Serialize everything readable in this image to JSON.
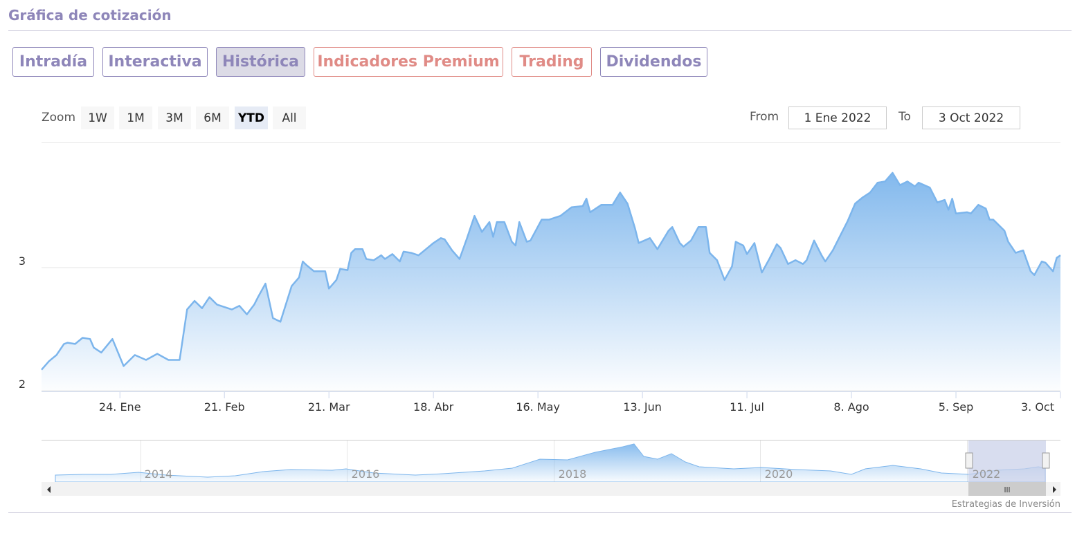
{
  "header": {
    "title": "Gráfica de cotización"
  },
  "tabs": [
    {
      "label": "Intradía"
    },
    {
      "label": "Interactiva"
    },
    {
      "label": "Histórica"
    },
    {
      "label": "Indicadores Premium"
    },
    {
      "label": "Trading"
    },
    {
      "label": "Dividendos"
    }
  ],
  "zoom": {
    "label": "Zoom",
    "buttons": [
      "1W",
      "1M",
      "3M",
      "6M",
      "YTD",
      "All"
    ]
  },
  "range": {
    "from_label": "From",
    "from": "1 Ene 2022",
    "to_label": "To",
    "to": "3 Oct 2022"
  },
  "chart_data": {
    "type": "area",
    "color": "#7cb5ec",
    "x": [
      2,
      4,
      6,
      8,
      9,
      11,
      13,
      15,
      16,
      18,
      21,
      24,
      27,
      30,
      33,
      36,
      39,
      41,
      43,
      45,
      47,
      49,
      53,
      55,
      57,
      59,
      60,
      62,
      64,
      66,
      69,
      71,
      72,
      73,
      75,
      78,
      79,
      81,
      82,
      84,
      85,
      86,
      88,
      89,
      91,
      93,
      94,
      96,
      98,
      99,
      101,
      103,
      105,
      107,
      109,
      110,
      112,
      114,
      116,
      118,
      120,
      122,
      123,
      124,
      126,
      128,
      129,
      130,
      132,
      133,
      136,
      138,
      141,
      144,
      147,
      148,
      149,
      152,
      155,
      157,
      159,
      161,
      162,
      165,
      167,
      170,
      171,
      173,
      174,
      176,
      178,
      180,
      181,
      183,
      185,
      187,
      188,
      190,
      191,
      193,
      195,
      197,
      199,
      200,
      202,
      204,
      206,
      207,
      209,
      211,
      212,
      214,
      216,
      218,
      220,
      222,
      224,
      226,
      228,
      230,
      232,
      234,
      236,
      237,
      240,
      242,
      244,
      245,
      246,
      247,
      250,
      251,
      253,
      255,
      256,
      257,
      260,
      261,
      263,
      265,
      267,
      268,
      270,
      271,
      273,
      274,
      275
    ],
    "values": [
      2.17,
      2.24,
      2.29,
      2.38,
      2.39,
      2.38,
      2.43,
      2.42,
      2.35,
      2.31,
      2.42,
      2.2,
      2.29,
      2.25,
      2.3,
      2.25,
      2.25,
      2.66,
      2.73,
      2.67,
      2.76,
      2.7,
      2.66,
      2.69,
      2.62,
      2.7,
      2.76,
      2.87,
      2.59,
      2.56,
      2.85,
      2.92,
      3.05,
      3.02,
      2.97,
      2.97,
      2.83,
      2.9,
      2.99,
      2.98,
      3.12,
      3.15,
      3.15,
      3.07,
      3.06,
      3.1,
      3.07,
      3.11,
      3.05,
      3.13,
      3.12,
      3.1,
      3.15,
      3.2,
      3.24,
      3.23,
      3.14,
      3.07,
      3.24,
      3.42,
      3.29,
      3.37,
      3.25,
      3.37,
      3.37,
      3.21,
      3.18,
      3.37,
      3.21,
      3.22,
      3.39,
      3.39,
      3.42,
      3.49,
      3.5,
      3.56,
      3.45,
      3.51,
      3.51,
      3.61,
      3.52,
      3.32,
      3.2,
      3.24,
      3.15,
      3.3,
      3.33,
      3.2,
      3.17,
      3.22,
      3.33,
      3.33,
      3.12,
      3.06,
      2.9,
      3.01,
      3.21,
      3.18,
      3.11,
      3.2,
      2.96,
      3.07,
      3.19,
      3.16,
      3.03,
      3.06,
      3.03,
      3.06,
      3.22,
      3.1,
      3.05,
      3.14,
      3.26,
      3.38,
      3.52,
      3.57,
      3.61,
      3.69,
      3.7,
      3.77,
      3.67,
      3.7,
      3.66,
      3.69,
      3.65,
      3.53,
      3.55,
      3.47,
      3.56,
      3.44,
      3.45,
      3.44,
      3.51,
      3.48,
      3.39,
      3.39,
      3.3,
      3.21,
      3.12,
      3.14,
      2.97,
      2.94,
      3.05,
      3.04,
      2.97,
      3.08,
      3.1
    ],
    "xlim": [
      2,
      275
    ],
    "xticks": [
      {
        "value": 23,
        "label": "24. Ene"
      },
      {
        "value": 51,
        "label": "21. Feb"
      },
      {
        "value": 79,
        "label": "21. Mar"
      },
      {
        "value": 107,
        "label": "18. Abr"
      },
      {
        "value": 135,
        "label": "16. May"
      },
      {
        "value": 163,
        "label": "13. Jun"
      },
      {
        "value": 191,
        "label": "11. Jul"
      },
      {
        "value": 219,
        "label": "8. Ago"
      },
      {
        "value": 247,
        "label": "5. Sep"
      },
      {
        "value": 275,
        "label": "3. Oct"
      }
    ],
    "ylim": [
      2,
      4
    ],
    "yticks": [
      2,
      3
    ],
    "grid": true
  },
  "navigator": {
    "labels": [
      "2014",
      "2016",
      "2018",
      "2020",
      "2022"
    ]
  },
  "credit": "Estrategias de Inversión"
}
